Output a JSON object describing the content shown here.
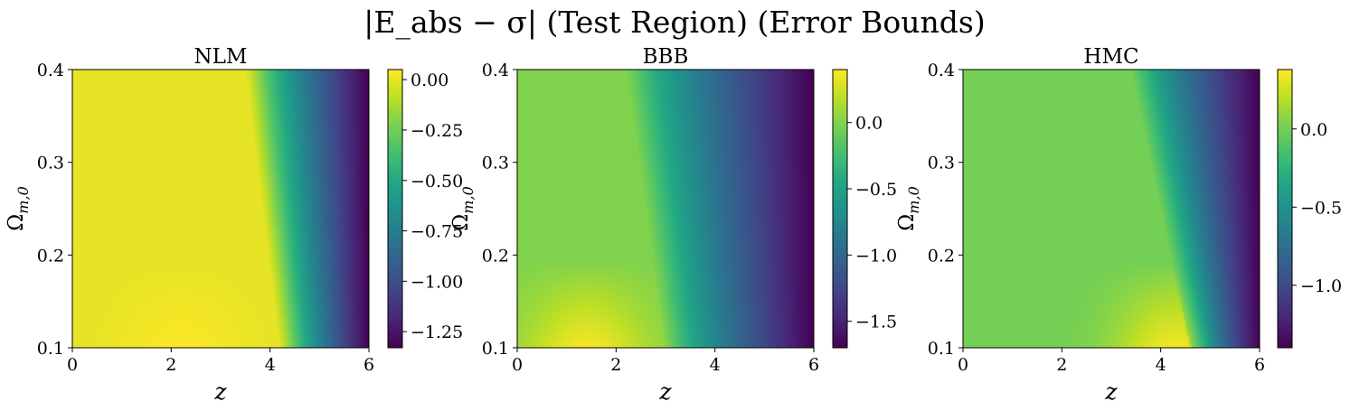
{
  "figure": {
    "suptitle": "|E_abs − σ| (Test Region) (Error Bounds)"
  },
  "chart_data": [
    {
      "type": "heatmap",
      "title": "NLM",
      "xlabel": "z",
      "ylabel": "Ω_m,0",
      "xlim": [
        0,
        6
      ],
      "ylim": [
        0.1,
        0.4
      ],
      "xticks": [
        "0",
        "2",
        "4",
        "6"
      ],
      "yticks": [
        "0.1",
        "0.2",
        "0.3",
        "0.4"
      ],
      "colormap": "viridis",
      "colorbar": {
        "range": [
          -1.33,
          0.05
        ],
        "ticks": [
          "0.00",
          "−0.25",
          "−0.50",
          "−0.75",
          "−1.00",
          "−1.25"
        ],
        "tick_values": [
          0,
          -0.25,
          -0.5,
          -0.75,
          -1.0,
          -1.25
        ]
      },
      "field": {
        "boundary_low_om": 4.2,
        "boundary_high_om": 3.5,
        "plateau": 0.0,
        "min": -1.33,
        "width": 0.55,
        "hotspot_z": 2.2
      }
    },
    {
      "type": "heatmap",
      "title": "BBB",
      "xlabel": "z",
      "ylabel": "Ω_m,0",
      "xlim": [
        0,
        6
      ],
      "ylim": [
        0.1,
        0.4
      ],
      "xticks": [
        "0",
        "2",
        "4",
        "6"
      ],
      "yticks": [
        "0.1",
        "0.2",
        "0.3",
        "0.4"
      ],
      "colormap": "viridis",
      "colorbar": {
        "range": [
          -1.7,
          0.4
        ],
        "ticks": [
          "0.0",
          "−0.5",
          "−1.0",
          "−1.5"
        ],
        "tick_values": [
          0,
          -0.5,
          -1.0,
          -1.5
        ]
      },
      "field": {
        "boundary_low_om": 3.0,
        "boundary_high_om": 2.2,
        "plateau": 0.0,
        "min": -1.7,
        "width": 0.6,
        "hotspot_z": 1.4
      }
    },
    {
      "type": "heatmap",
      "title": "HMC",
      "xlabel": "z",
      "ylabel": "Ω_m,0",
      "xlim": [
        0,
        6
      ],
      "ylim": [
        0.1,
        0.4
      ],
      "xticks": [
        "0",
        "2",
        "4",
        "6"
      ],
      "yticks": [
        "0.1",
        "0.2",
        "0.3",
        "0.4"
      ],
      "colormap": "viridis",
      "colorbar": {
        "range": [
          -1.4,
          0.38
        ],
        "ticks": [
          "0.0",
          "−0.5",
          "−1.0"
        ],
        "tick_values": [
          0,
          -0.5,
          -1.0
        ]
      },
      "field": {
        "boundary_low_om": 4.6,
        "boundary_high_om": 3.4,
        "plateau": 0.0,
        "min": -1.4,
        "width": 0.6,
        "hotspot_z": 4.3
      }
    }
  ]
}
